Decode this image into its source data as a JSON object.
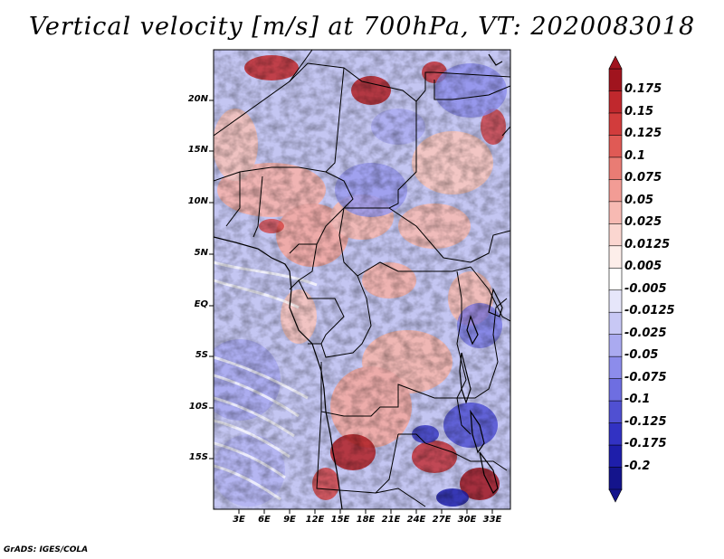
{
  "title": "Vertical velocity [m/s] at 700hPa, VT: 2020083018",
  "credit": "GrADS: IGES/COLA",
  "map": {
    "lat_labels": [
      "20N",
      "15N",
      "10N",
      "5N",
      "EQ",
      "5S",
      "10S",
      "15S"
    ],
    "lon_labels": [
      "3E",
      "6E",
      "9E",
      "12E",
      "15E",
      "18E",
      "21E",
      "24E",
      "27E",
      "30E",
      "33E"
    ]
  },
  "colorbar": {
    "labels": [
      "0.175",
      "0.15",
      "0.125",
      "0.1",
      "0.075",
      "0.05",
      "0.025",
      "0.0125",
      "0.005",
      "-0.005",
      "-0.0125",
      "-0.025",
      "-0.05",
      "-0.075",
      "-0.1",
      "-0.125",
      "-0.175",
      "-0.2"
    ],
    "colors": [
      "#a0141e",
      "#c0282d",
      "#d23c3c",
      "#e05a55",
      "#e97c74",
      "#f29c95",
      "#f7bab3",
      "#fbd6d0",
      "#fdeeea",
      "#ffffff",
      "#e6e6fa",
      "#c8c8f5",
      "#aaaaf0",
      "#8c8ceb",
      "#6e6ee1",
      "#5050d2",
      "#3232c3",
      "#1e1eaa",
      "#14148c"
    ]
  }
}
